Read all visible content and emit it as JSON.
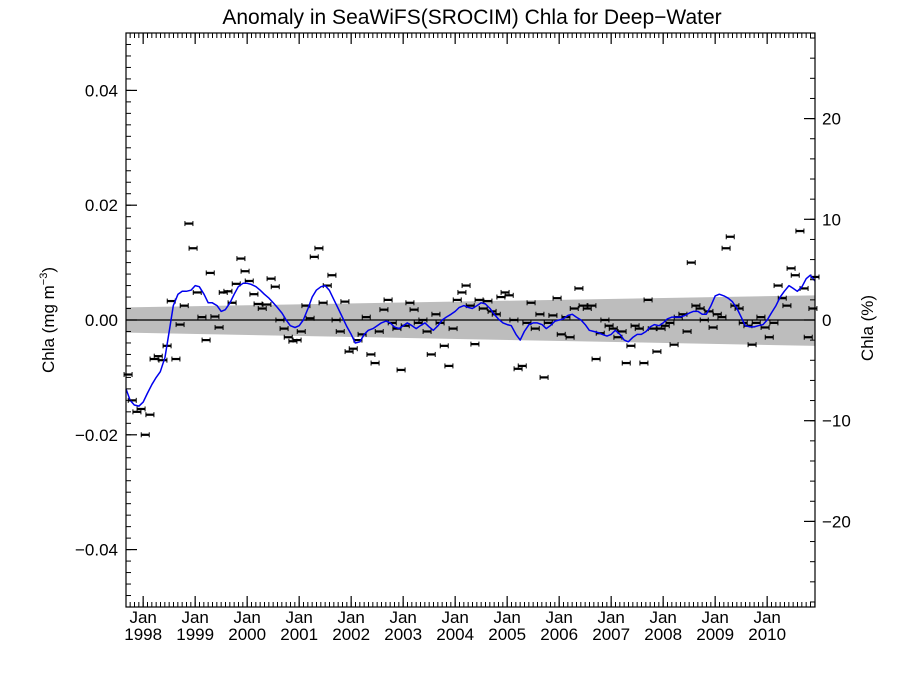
{
  "chart_data": {
    "type": "scatter",
    "title": "Anomaly in SeaWiFS(SROCIM) Chla for Deep−Water",
    "ylabel_main": "Chla (mg m",
    "ylabel_sup": "−3",
    "ylabel_close": ")",
    "ylabel_right": "Chla (%)",
    "xlim": [
      1997.67,
      2010.92
    ],
    "ylim": [
      -0.05,
      0.05
    ],
    "y2lim": [
      -28.5,
      28.5
    ],
    "x_ticks": [
      {
        "year": 1998,
        "month": "Jan",
        "label": "1998"
      },
      {
        "year": 1999,
        "month": "Jan",
        "label": "1999"
      },
      {
        "year": 2000,
        "month": "Jan",
        "label": "2000"
      },
      {
        "year": 2001,
        "month": "Jan",
        "label": "2001"
      },
      {
        "year": 2002,
        "month": "Jan",
        "label": "2002"
      },
      {
        "year": 2003,
        "month": "Jan",
        "label": "2003"
      },
      {
        "year": 2004,
        "month": "Jan",
        "label": "2004"
      },
      {
        "year": 2005,
        "month": "Jan",
        "label": "2005"
      },
      {
        "year": 2006,
        "month": "Jan",
        "label": "2006"
      },
      {
        "year": 2007,
        "month": "Jan",
        "label": "2007"
      },
      {
        "year": 2008,
        "month": "Jan",
        "label": "2008"
      },
      {
        "year": 2009,
        "month": "Jan",
        "label": "2009"
      },
      {
        "year": 2010,
        "month": "Jan",
        "label": "2010"
      }
    ],
    "y_ticks": [
      {
        "value": 0.04,
        "label": "0.04"
      },
      {
        "value": 0.02,
        "label": "0.02"
      },
      {
        "value": 0.0,
        "label": "0.00"
      },
      {
        "value": -0.02,
        "label": "−0.02"
      },
      {
        "value": -0.04,
        "label": "−0.04"
      }
    ],
    "y2_ticks": [
      {
        "value": 20,
        "label": "20"
      },
      {
        "value": 10,
        "label": "10"
      },
      {
        "value": 0,
        "label": "0"
      },
      {
        "value": -10,
        "label": "−10"
      },
      {
        "value": -20,
        "label": "−20"
      }
    ],
    "monthly_anomaly": [
      [
        1997.71,
        -0.0095
      ],
      [
        1997.79,
        -0.014
      ],
      [
        1997.88,
        -0.016
      ],
      [
        1997.96,
        -0.0155
      ],
      [
        1998.04,
        -0.02
      ],
      [
        1998.13,
        -0.0165
      ],
      [
        1998.21,
        -0.0068
      ],
      [
        1998.29,
        -0.0063
      ],
      [
        1998.38,
        -0.007
      ],
      [
        1998.46,
        -0.0045
      ],
      [
        1998.54,
        0.0033
      ],
      [
        1998.63,
        -0.0068
      ],
      [
        1998.71,
        -0.0008
      ],
      [
        1998.79,
        0.0025
      ],
      [
        1998.88,
        0.0168
      ],
      [
        1998.96,
        0.0125
      ],
      [
        1999.04,
        0.0048
      ],
      [
        1999.13,
        0.0005
      ],
      [
        1999.21,
        -0.0035
      ],
      [
        1999.29,
        0.0082
      ],
      [
        1999.38,
        0.0006
      ],
      [
        1999.46,
        -0.0013
      ],
      [
        1999.54,
        0.0048
      ],
      [
        1999.63,
        0.005
      ],
      [
        1999.71,
        0.003
      ],
      [
        1999.79,
        0.0063
      ],
      [
        1999.88,
        0.0107
      ],
      [
        1999.96,
        0.0085
      ],
      [
        2000.04,
        0.0068
      ],
      [
        2000.13,
        0.0045
      ],
      [
        2000.21,
        0.0028
      ],
      [
        2000.29,
        0.002
      ],
      [
        2000.38,
        0.0027
      ],
      [
        2000.46,
        0.0072
      ],
      [
        2000.54,
        0.0058
      ],
      [
        2000.63,
        0.0
      ],
      [
        2000.71,
        -0.0015
      ],
      [
        2000.79,
        -0.003
      ],
      [
        2000.88,
        -0.0037
      ],
      [
        2000.96,
        -0.0035
      ],
      [
        2001.04,
        -0.002
      ],
      [
        2001.13,
        0.0025
      ],
      [
        2001.21,
        0.0003
      ],
      [
        2001.29,
        0.011
      ],
      [
        2001.38,
        0.0125
      ],
      [
        2001.46,
        0.003
      ],
      [
        2001.54,
        0.006
      ],
      [
        2001.63,
        0.0078
      ],
      [
        2001.71,
        0.0
      ],
      [
        2001.79,
        -0.002
      ],
      [
        2001.88,
        0.0032
      ],
      [
        2001.96,
        -0.0055
      ],
      [
        2002.04,
        -0.005
      ],
      [
        2002.13,
        -0.0035
      ],
      [
        2002.21,
        -0.0025
      ],
      [
        2002.29,
        0.0005
      ],
      [
        2002.38,
        -0.006
      ],
      [
        2002.46,
        -0.0075
      ],
      [
        2002.54,
        -0.002
      ],
      [
        2002.63,
        0.0018
      ],
      [
        2002.71,
        0.0035
      ],
      [
        2002.79,
        -0.0005
      ],
      [
        2002.88,
        -0.0015
      ],
      [
        2002.96,
        -0.0087
      ],
      [
        2003.04,
        -0.001
      ],
      [
        2003.13,
        0.003
      ],
      [
        2003.21,
        0.0018
      ],
      [
        2003.29,
        -0.0005
      ],
      [
        2003.38,
        0.0
      ],
      [
        2003.46,
        -0.002
      ],
      [
        2003.54,
        -0.006
      ],
      [
        2003.63,
        0.001
      ],
      [
        2003.71,
        -0.0005
      ],
      [
        2003.79,
        -0.0045
      ],
      [
        2003.88,
        -0.008
      ],
      [
        2003.96,
        -0.0015
      ],
      [
        2004.04,
        0.0035
      ],
      [
        2004.13,
        0.0048
      ],
      [
        2004.21,
        0.006
      ],
      [
        2004.29,
        0.0025
      ],
      [
        2004.38,
        -0.0042
      ],
      [
        2004.46,
        0.0035
      ],
      [
        2004.54,
        0.002
      ],
      [
        2004.63,
        0.0033
      ],
      [
        2004.71,
        0.0015
      ],
      [
        2004.79,
        0.001
      ],
      [
        2004.88,
        0.004
      ],
      [
        2004.96,
        0.0048
      ],
      [
        2005.04,
        0.0043
      ],
      [
        2005.13,
        0.0
      ],
      [
        2005.21,
        -0.0085
      ],
      [
        2005.29,
        -0.008
      ],
      [
        2005.38,
        -0.0005
      ],
      [
        2005.46,
        0.003
      ],
      [
        2005.54,
        -0.0015
      ],
      [
        2005.63,
        0.001
      ],
      [
        2005.71,
        -0.01
      ],
      [
        2005.79,
        -0.0005
      ],
      [
        2005.88,
        0.0008
      ],
      [
        2005.96,
        0.0038
      ],
      [
        2006.04,
        -0.0025
      ],
      [
        2006.13,
        0.0005
      ],
      [
        2006.21,
        -0.003
      ],
      [
        2006.29,
        0.002
      ],
      [
        2006.38,
        0.0055
      ],
      [
        2006.46,
        0.0025
      ],
      [
        2006.54,
        0.002
      ],
      [
        2006.63,
        0.0025
      ],
      [
        2006.71,
        -0.0068
      ],
      [
        2006.79,
        -0.0023
      ],
      [
        2006.88,
        0.0
      ],
      [
        2006.96,
        -0.001
      ],
      [
        2007.04,
        -0.0015
      ],
      [
        2007.13,
        -0.003
      ],
      [
        2007.21,
        -0.002
      ],
      [
        2007.29,
        -0.0075
      ],
      [
        2007.38,
        -0.0045
      ],
      [
        2007.46,
        -0.001
      ],
      [
        2007.54,
        -0.0015
      ],
      [
        2007.63,
        -0.0075
      ],
      [
        2007.71,
        0.0035
      ],
      [
        2007.79,
        -0.0015
      ],
      [
        2007.88,
        -0.0055
      ],
      [
        2007.96,
        -0.0015
      ],
      [
        2008.04,
        -0.001
      ],
      [
        2008.13,
        -0.0005
      ],
      [
        2008.21,
        -0.0043
      ],
      [
        2008.29,
        0.0005
      ],
      [
        2008.38,
        0.001
      ],
      [
        2008.46,
        -0.002
      ],
      [
        2008.54,
        0.01
      ],
      [
        2008.63,
        0.0025
      ],
      [
        2008.71,
        0.002
      ],
      [
        2008.79,
        0.0
      ],
      [
        2008.88,
        0.0015
      ],
      [
        2008.96,
        -0.0013
      ],
      [
        2009.04,
        0.001
      ],
      [
        2009.13,
        0.0005
      ],
      [
        2009.21,
        0.0125
      ],
      [
        2009.29,
        0.0145
      ],
      [
        2009.38,
        0.0025
      ],
      [
        2009.46,
        0.002
      ],
      [
        2009.54,
        -0.0005
      ],
      [
        2009.63,
        -0.001
      ],
      [
        2009.71,
        -0.0043
      ],
      [
        2009.79,
        -0.0005
      ],
      [
        2009.88,
        0.0005
      ],
      [
        2009.96,
        -0.0013
      ],
      [
        2010.04,
        -0.003
      ],
      [
        2010.13,
        -0.0005
      ],
      [
        2010.21,
        0.006
      ],
      [
        2010.29,
        0.0038
      ],
      [
        2010.38,
        0.0025
      ],
      [
        2010.46,
        0.009
      ],
      [
        2010.54,
        0.0078
      ],
      [
        2010.63,
        0.0155
      ],
      [
        2010.71,
        0.0055
      ],
      [
        2010.79,
        -0.003
      ],
      [
        2010.88,
        0.002
      ],
      [
        2010.92,
        0.0075
      ]
    ],
    "smoothed": [
      [
        1997.67,
        -0.012
      ],
      [
        1997.75,
        -0.014
      ],
      [
        1997.83,
        -0.0148
      ],
      [
        1997.92,
        -0.015
      ],
      [
        1998.0,
        -0.0143
      ],
      [
        1998.08,
        -0.0128
      ],
      [
        1998.17,
        -0.0112
      ],
      [
        1998.25,
        -0.01
      ],
      [
        1998.33,
        -0.009
      ],
      [
        1998.42,
        -0.0065
      ],
      [
        1998.5,
        -0.002
      ],
      [
        1998.58,
        0.0025
      ],
      [
        1998.67,
        0.0045
      ],
      [
        1998.75,
        0.005
      ],
      [
        1998.83,
        0.005
      ],
      [
        1998.92,
        0.0052
      ],
      [
        1999.0,
        0.006
      ],
      [
        1999.08,
        0.0058
      ],
      [
        1999.17,
        0.0045
      ],
      [
        1999.25,
        0.003
      ],
      [
        1999.33,
        0.003
      ],
      [
        1999.42,
        0.0025
      ],
      [
        1999.5,
        0.0015
      ],
      [
        1999.58,
        0.0018
      ],
      [
        1999.67,
        0.003
      ],
      [
        1999.75,
        0.0045
      ],
      [
        1999.83,
        0.0058
      ],
      [
        1999.92,
        0.0064
      ],
      [
        2000.0,
        0.0064
      ],
      [
        2000.08,
        0.0062
      ],
      [
        2000.17,
        0.0058
      ],
      [
        2000.25,
        0.0052
      ],
      [
        2000.33,
        0.0045
      ],
      [
        2000.42,
        0.0038
      ],
      [
        2000.5,
        0.003
      ],
      [
        2000.58,
        0.0022
      ],
      [
        2000.67,
        0.0012
      ],
      [
        2000.75,
        0.0
      ],
      [
        2000.83,
        -0.001
      ],
      [
        2000.92,
        -0.0013
      ],
      [
        2001.0,
        -0.001
      ],
      [
        2001.08,
        0.0
      ],
      [
        2001.17,
        0.002
      ],
      [
        2001.25,
        0.004
      ],
      [
        2001.33,
        0.0052
      ],
      [
        2001.42,
        0.0058
      ],
      [
        2001.5,
        0.006
      ],
      [
        2001.58,
        0.0052
      ],
      [
        2001.67,
        0.0035
      ],
      [
        2001.75,
        0.002
      ],
      [
        2001.83,
        0.0005
      ],
      [
        2001.92,
        -0.0012
      ],
      [
        2002.0,
        -0.0025
      ],
      [
        2002.08,
        -0.004
      ],
      [
        2002.17,
        -0.0038
      ],
      [
        2002.25,
        -0.0025
      ],
      [
        2002.33,
        -0.0018
      ],
      [
        2002.42,
        -0.0015
      ],
      [
        2002.5,
        -0.001
      ],
      [
        2002.58,
        -0.0005
      ],
      [
        2002.67,
        -0.0002
      ],
      [
        2002.75,
        -0.0005
      ],
      [
        2002.83,
        -0.0012
      ],
      [
        2002.92,
        -0.0015
      ],
      [
        2003.0,
        -0.001
      ],
      [
        2003.08,
        -0.0005
      ],
      [
        2003.17,
        -0.001
      ],
      [
        2003.25,
        -0.0015
      ],
      [
        2003.33,
        -0.001
      ],
      [
        2003.42,
        -0.0005
      ],
      [
        2003.5,
        -0.0012
      ],
      [
        2003.58,
        -0.0018
      ],
      [
        2003.67,
        -0.001
      ],
      [
        2003.75,
        0.0
      ],
      [
        2003.83,
        0.0005
      ],
      [
        2003.92,
        0.001
      ],
      [
        2004.0,
        0.0015
      ],
      [
        2004.08,
        0.0022
      ],
      [
        2004.17,
        0.0025
      ],
      [
        2004.25,
        0.0022
      ],
      [
        2004.33,
        0.002
      ],
      [
        2004.42,
        0.0025
      ],
      [
        2004.5,
        0.003
      ],
      [
        2004.58,
        0.0028
      ],
      [
        2004.67,
        0.002
      ],
      [
        2004.75,
        0.001
      ],
      [
        2004.83,
        0.0002
      ],
      [
        2004.92,
        -0.0005
      ],
      [
        2005.0,
        -0.0008
      ],
      [
        2005.08,
        -0.001
      ],
      [
        2005.17,
        -0.0025
      ],
      [
        2005.25,
        -0.0035
      ],
      [
        2005.33,
        -0.002
      ],
      [
        2005.42,
        -0.0008
      ],
      [
        2005.5,
        -0.0005
      ],
      [
        2005.58,
        -0.0005
      ],
      [
        2005.67,
        -0.0008
      ],
      [
        2005.75,
        -0.0015
      ],
      [
        2005.83,
        -0.001
      ],
      [
        2005.92,
        -0.0002
      ],
      [
        2006.0,
        0.0
      ],
      [
        2006.08,
        0.0002
      ],
      [
        2006.17,
        0.0008
      ],
      [
        2006.25,
        0.001
      ],
      [
        2006.33,
        0.0005
      ],
      [
        2006.42,
        0.0
      ],
      [
        2006.5,
        -0.0008
      ],
      [
        2006.58,
        -0.0018
      ],
      [
        2006.67,
        -0.002
      ],
      [
        2006.75,
        -0.0022
      ],
      [
        2006.83,
        -0.0025
      ],
      [
        2006.92,
        -0.0028
      ],
      [
        2007.0,
        -0.0025
      ],
      [
        2007.08,
        -0.0018
      ],
      [
        2007.17,
        -0.0025
      ],
      [
        2007.25,
        -0.0035
      ],
      [
        2007.33,
        -0.0038
      ],
      [
        2007.42,
        -0.003
      ],
      [
        2007.5,
        -0.0025
      ],
      [
        2007.58,
        -0.0025
      ],
      [
        2007.67,
        -0.002
      ],
      [
        2007.75,
        -0.0012
      ],
      [
        2007.83,
        -0.0008
      ],
      [
        2007.92,
        -0.001
      ],
      [
        2008.0,
        -0.0005
      ],
      [
        2008.08,
        0.0002
      ],
      [
        2008.17,
        0.0005
      ],
      [
        2008.25,
        0.0005
      ],
      [
        2008.33,
        0.0005
      ],
      [
        2008.42,
        0.0008
      ],
      [
        2008.5,
        0.0012
      ],
      [
        2008.58,
        0.0015
      ],
      [
        2008.67,
        0.0015
      ],
      [
        2008.75,
        0.001
      ],
      [
        2008.83,
        0.001
      ],
      [
        2008.92,
        0.0025
      ],
      [
        2009.0,
        0.0042
      ],
      [
        2009.08,
        0.0045
      ],
      [
        2009.17,
        0.0042
      ],
      [
        2009.25,
        0.0038
      ],
      [
        2009.33,
        0.0032
      ],
      [
        2009.42,
        0.002
      ],
      [
        2009.5,
        0.0005
      ],
      [
        2009.58,
        -0.001
      ],
      [
        2009.67,
        -0.0012
      ],
      [
        2009.75,
        -0.0012
      ],
      [
        2009.83,
        -0.001
      ],
      [
        2009.92,
        -0.0008
      ],
      [
        2010.0,
        0.0
      ],
      [
        2010.08,
        0.0012
      ],
      [
        2010.17,
        0.0025
      ],
      [
        2010.25,
        0.004
      ],
      [
        2010.33,
        0.005
      ],
      [
        2010.42,
        0.006
      ],
      [
        2010.5,
        0.0055
      ],
      [
        2010.58,
        0.005
      ],
      [
        2010.67,
        0.0058
      ],
      [
        2010.75,
        0.0072
      ],
      [
        2010.83,
        0.0078
      ],
      [
        2010.92,
        0.0068
      ]
    ],
    "confidence_band": {
      "x": [
        1997.67,
        2010.92
      ],
      "upper": [
        0.0022,
        0.0043
      ],
      "lower": [
        -0.0022,
        -0.0045
      ]
    },
    "colors": {
      "smoothed": "#0000ee",
      "band": "#bdbdbd",
      "markers": "#000000"
    }
  }
}
